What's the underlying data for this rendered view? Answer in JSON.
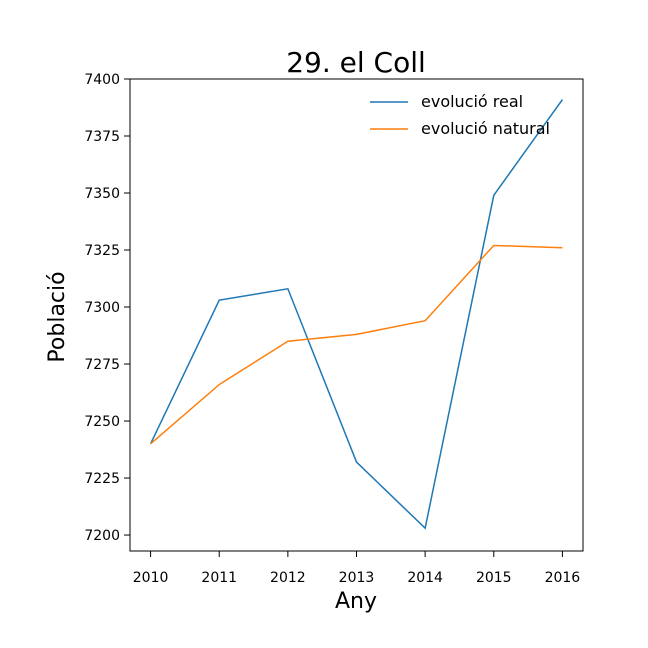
{
  "chart_data": {
    "type": "line",
    "title": "29. el Coll",
    "xlabel": "Any",
    "ylabel": "Població",
    "x": [
      2010,
      2011,
      2012,
      2013,
      2014,
      2015,
      2016
    ],
    "xlim": [
      2009.7,
      2016.3
    ],
    "ylim": [
      7193,
      7400
    ],
    "yticks": [
      7200,
      7225,
      7250,
      7275,
      7300,
      7325,
      7350,
      7375,
      7400
    ],
    "grid": false,
    "legend": "top-right",
    "series": [
      {
        "name": "evolució real",
        "color": "#1f77b4",
        "values": [
          7240,
          7303,
          7308,
          7232,
          7203,
          7349,
          7391
        ]
      },
      {
        "name": "evolució natural",
        "color": "#ff7f0e",
        "values": [
          7240,
          7266,
          7285,
          7288,
          7294,
          7327,
          7326
        ]
      }
    ]
  }
}
